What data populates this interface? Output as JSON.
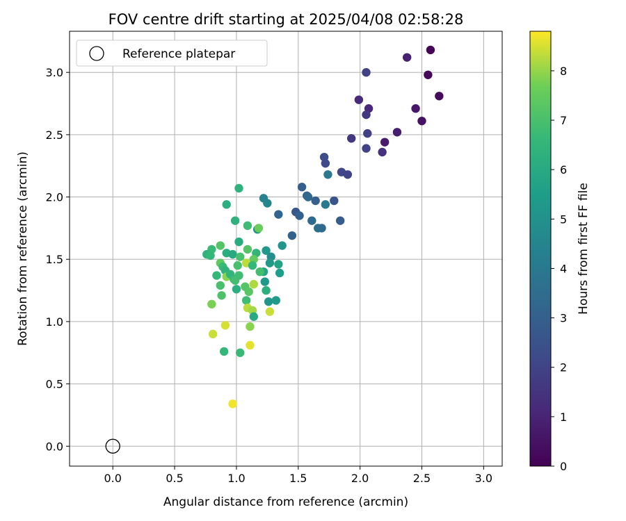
{
  "chart_data": {
    "type": "scatter",
    "title": "FOV centre drift starting at 2025/04/08 02:58:28",
    "xlabel": "Angular distance from reference (arcmin)",
    "ylabel": "Rotation from reference (arcmin)",
    "xlim": [
      -0.35,
      3.15
    ],
    "ylim": [
      -0.16,
      3.33
    ],
    "xticks": [
      "0.0",
      "0.5",
      "1.0",
      "1.5",
      "2.0",
      "2.5",
      "3.0"
    ],
    "xtick_values": [
      0,
      0.5,
      1,
      1.5,
      2,
      2.5,
      3
    ],
    "yticks": [
      "0.0",
      "0.5",
      "1.0",
      "1.5",
      "2.0",
      "2.5",
      "3.0"
    ],
    "ytick_values": [
      0,
      0.5,
      1,
      1.5,
      2,
      2.5,
      3
    ],
    "grid": true,
    "legend": {
      "position": "top-left",
      "entries": [
        "Reference platepar"
      ]
    },
    "reference_point": {
      "x": 0.0,
      "y": 0.0,
      "label": "Reference platepar"
    },
    "colorbar": {
      "label": "Hours from first FF file",
      "colormap": "viridis",
      "range": [
        0,
        8.8
      ],
      "ticks": [
        "0",
        "1",
        "2",
        "3",
        "4",
        "5",
        "6",
        "7",
        "8"
      ],
      "tick_values": [
        0,
        1,
        2,
        3,
        4,
        5,
        6,
        7,
        8
      ]
    },
    "points": [
      {
        "x": 2.57,
        "y": 3.18,
        "t": 0.1
      },
      {
        "x": 2.55,
        "y": 2.98,
        "t": 0.2
      },
      {
        "x": 2.64,
        "y": 2.81,
        "t": 0.3
      },
      {
        "x": 2.5,
        "y": 2.61,
        "t": 0.5
      },
      {
        "x": 2.45,
        "y": 2.71,
        "t": 0.6
      },
      {
        "x": 2.38,
        "y": 3.12,
        "t": 0.9
      },
      {
        "x": 2.3,
        "y": 2.52,
        "t": 0.8
      },
      {
        "x": 2.2,
        "y": 2.44,
        "t": 0.7
      },
      {
        "x": 2.18,
        "y": 2.36,
        "t": 1.4
      },
      {
        "x": 2.07,
        "y": 2.71,
        "t": 1.1
      },
      {
        "x": 1.99,
        "y": 2.78,
        "t": 1.2
      },
      {
        "x": 2.05,
        "y": 2.66,
        "t": 1.6
      },
      {
        "x": 2.05,
        "y": 3.0,
        "t": 1.9
      },
      {
        "x": 2.06,
        "y": 2.51,
        "t": 1.9
      },
      {
        "x": 2.05,
        "y": 2.39,
        "t": 2.0
      },
      {
        "x": 1.93,
        "y": 2.47,
        "t": 1.6
      },
      {
        "x": 1.85,
        "y": 2.2,
        "t": 2.1
      },
      {
        "x": 1.9,
        "y": 2.18,
        "t": 2.0
      },
      {
        "x": 1.71,
        "y": 2.32,
        "t": 2.3
      },
      {
        "x": 1.72,
        "y": 2.27,
        "t": 2.2
      },
      {
        "x": 1.74,
        "y": 2.18,
        "t": 4.0
      },
      {
        "x": 1.53,
        "y": 2.08,
        "t": 3.0
      },
      {
        "x": 1.57,
        "y": 2.01,
        "t": 3.2
      },
      {
        "x": 1.58,
        "y": 2.0,
        "t": 3.3
      },
      {
        "x": 1.64,
        "y": 1.97,
        "t": 3.0
      },
      {
        "x": 1.79,
        "y": 1.97,
        "t": 2.6
      },
      {
        "x": 1.72,
        "y": 1.94,
        "t": 4.0
      },
      {
        "x": 1.48,
        "y": 1.88,
        "t": 2.7
      },
      {
        "x": 1.51,
        "y": 1.85,
        "t": 3.0
      },
      {
        "x": 1.61,
        "y": 1.81,
        "t": 3.4
      },
      {
        "x": 1.84,
        "y": 1.81,
        "t": 2.9
      },
      {
        "x": 1.66,
        "y": 1.75,
        "t": 3.6
      },
      {
        "x": 1.69,
        "y": 1.75,
        "t": 3.4
      },
      {
        "x": 1.45,
        "y": 1.69,
        "t": 3.1
      },
      {
        "x": 1.34,
        "y": 1.86,
        "t": 3.2
      },
      {
        "x": 1.22,
        "y": 1.99,
        "t": 4.4
      },
      {
        "x": 1.25,
        "y": 1.95,
        "t": 4.6
      },
      {
        "x": 1.17,
        "y": 1.74,
        "t": 5.1
      },
      {
        "x": 1.37,
        "y": 1.61,
        "t": 5.2
      },
      {
        "x": 1.24,
        "y": 1.57,
        "t": 5.3
      },
      {
        "x": 1.28,
        "y": 1.52,
        "t": 4.8
      },
      {
        "x": 1.27,
        "y": 1.47,
        "t": 5.3
      },
      {
        "x": 1.34,
        "y": 1.46,
        "t": 5.7
      },
      {
        "x": 1.35,
        "y": 1.39,
        "t": 5.5
      },
      {
        "x": 1.22,
        "y": 1.4,
        "t": 5.8
      },
      {
        "x": 1.23,
        "y": 1.32,
        "t": 5.3
      },
      {
        "x": 1.24,
        "y": 1.25,
        "t": 6.2
      },
      {
        "x": 1.26,
        "y": 1.16,
        "t": 5.2
      },
      {
        "x": 1.32,
        "y": 1.17,
        "t": 5.4
      },
      {
        "x": 1.02,
        "y": 2.07,
        "t": 6.4
      },
      {
        "x": 0.92,
        "y": 1.94,
        "t": 6.2
      },
      {
        "x": 0.99,
        "y": 1.81,
        "t": 6.3
      },
      {
        "x": 1.09,
        "y": 1.77,
        "t": 6.8
      },
      {
        "x": 1.18,
        "y": 1.75,
        "t": 7.6
      },
      {
        "x": 1.02,
        "y": 1.64,
        "t": 6.1
      },
      {
        "x": 0.87,
        "y": 1.61,
        "t": 7.2
      },
      {
        "x": 0.8,
        "y": 1.58,
        "t": 6.7
      },
      {
        "x": 1.09,
        "y": 1.58,
        "t": 7.2
      },
      {
        "x": 1.16,
        "y": 1.55,
        "t": 6.5
      },
      {
        "x": 0.76,
        "y": 1.54,
        "t": 6.3
      },
      {
        "x": 0.79,
        "y": 1.53,
        "t": 6.6
      },
      {
        "x": 0.92,
        "y": 1.55,
        "t": 6.2
      },
      {
        "x": 0.97,
        "y": 1.54,
        "t": 6.0
      },
      {
        "x": 1.03,
        "y": 1.52,
        "t": 7.0
      },
      {
        "x": 1.14,
        "y": 1.5,
        "t": 7.5
      },
      {
        "x": 0.87,
        "y": 1.47,
        "t": 7.4
      },
      {
        "x": 1.08,
        "y": 1.47,
        "t": 8.3
      },
      {
        "x": 1.01,
        "y": 1.45,
        "t": 7.0
      },
      {
        "x": 1.13,
        "y": 1.45,
        "t": 6.6
      },
      {
        "x": 0.89,
        "y": 1.44,
        "t": 6.7
      },
      {
        "x": 0.91,
        "y": 1.41,
        "t": 6.4
      },
      {
        "x": 1.19,
        "y": 1.4,
        "t": 6.9
      },
      {
        "x": 0.84,
        "y": 1.37,
        "t": 6.6
      },
      {
        "x": 0.92,
        "y": 1.36,
        "t": 7.9
      },
      {
        "x": 0.95,
        "y": 1.38,
        "t": 6.5
      },
      {
        "x": 0.98,
        "y": 1.34,
        "t": 6.6
      },
      {
        "x": 1.02,
        "y": 1.37,
        "t": 6.8
      },
      {
        "x": 0.99,
        "y": 1.33,
        "t": 6.9
      },
      {
        "x": 0.87,
        "y": 1.29,
        "t": 7.0
      },
      {
        "x": 1.07,
        "y": 1.28,
        "t": 7.2
      },
      {
        "x": 1.14,
        "y": 1.3,
        "t": 8.2
      },
      {
        "x": 1.0,
        "y": 1.26,
        "t": 6.2
      },
      {
        "x": 1.1,
        "y": 1.24,
        "t": 7.3
      },
      {
        "x": 0.88,
        "y": 1.21,
        "t": 7.1
      },
      {
        "x": 1.08,
        "y": 1.17,
        "t": 6.8
      },
      {
        "x": 0.8,
        "y": 1.14,
        "t": 7.8
      },
      {
        "x": 1.09,
        "y": 1.11,
        "t": 8.3
      },
      {
        "x": 1.13,
        "y": 1.09,
        "t": 8.1
      },
      {
        "x": 1.27,
        "y": 1.08,
        "t": 8.4
      },
      {
        "x": 1.14,
        "y": 1.04,
        "t": 6.0
      },
      {
        "x": 0.91,
        "y": 0.97,
        "t": 8.5
      },
      {
        "x": 1.11,
        "y": 0.96,
        "t": 7.9
      },
      {
        "x": 0.81,
        "y": 0.9,
        "t": 8.4
      },
      {
        "x": 1.11,
        "y": 0.81,
        "t": 8.6
      },
      {
        "x": 0.9,
        "y": 0.76,
        "t": 6.6
      },
      {
        "x": 1.03,
        "y": 0.75,
        "t": 6.7
      },
      {
        "x": 0.97,
        "y": 0.34,
        "t": 8.7
      }
    ]
  }
}
